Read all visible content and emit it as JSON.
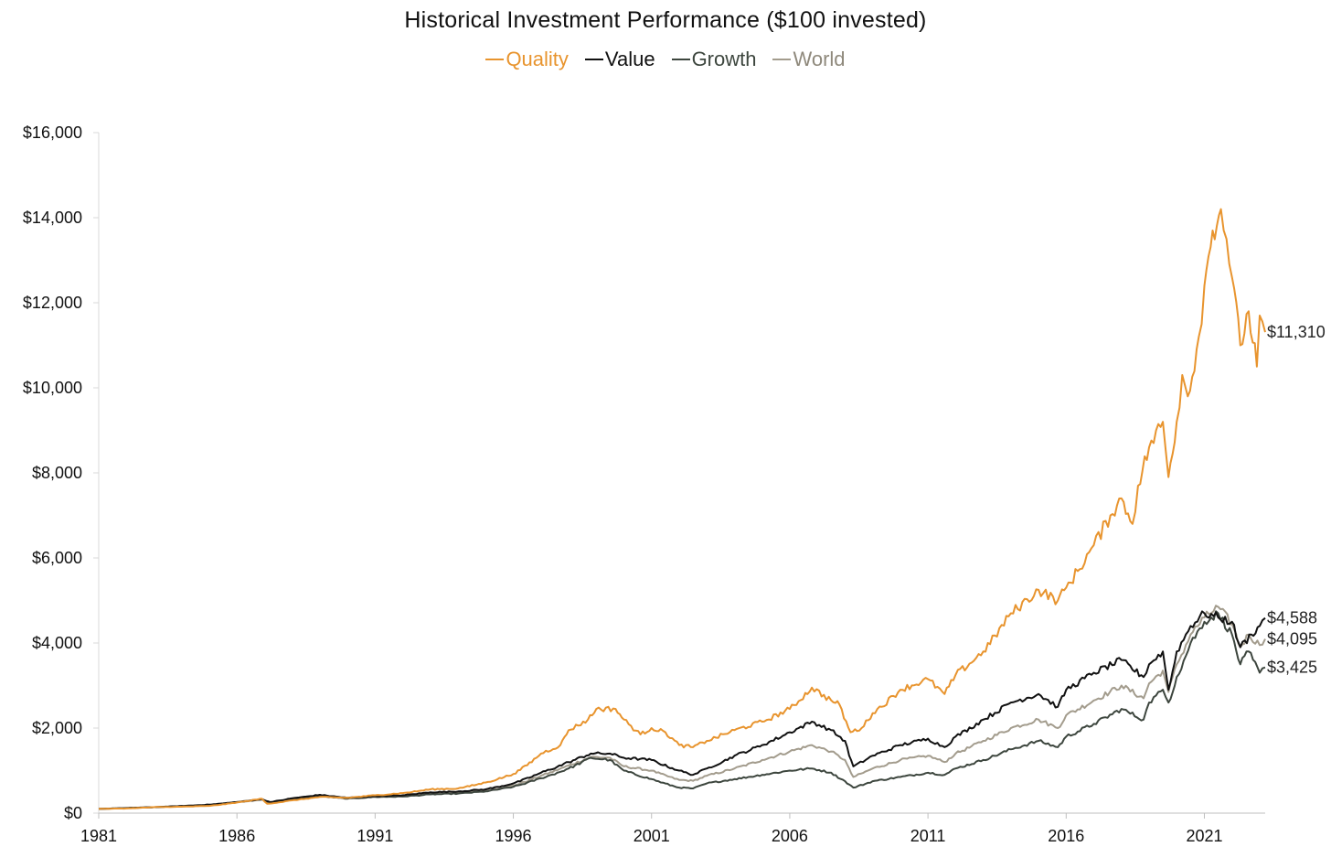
{
  "chart_data": {
    "type": "line",
    "title": "Historical Investment Performance ($100 invested)",
    "xlabel": "",
    "ylabel": "",
    "xlim": [
      1981,
      2023.2
    ],
    "ylim": [
      0,
      16000
    ],
    "x_ticks": [
      1981,
      1986,
      1991,
      1996,
      2001,
      2006,
      2011,
      2016,
      2021
    ],
    "x_tick_labels": [
      "1981",
      "1986",
      "1991",
      "1996",
      "2001",
      "2006",
      "2011",
      "2016",
      "2021"
    ],
    "y_ticks": [
      0,
      2000,
      4000,
      6000,
      8000,
      10000,
      12000,
      14000,
      16000
    ],
    "y_tick_labels": [
      "$0",
      "$2,000",
      "$4,000",
      "$6,000",
      "$8,000",
      "$10,000",
      "$12,000",
      "$14,000",
      "$16,000"
    ],
    "grid": false,
    "legend_position": "top-center",
    "series": [
      {
        "name": "Quality",
        "color": "#E8942E",
        "end_label": "$11,310",
        "points": [
          [
            1981,
            100
          ],
          [
            1982,
            110
          ],
          [
            1983,
            140
          ],
          [
            1984,
            150
          ],
          [
            1985,
            170
          ],
          [
            1986,
            250
          ],
          [
            1986.9,
            340
          ],
          [
            1987.1,
            220
          ],
          [
            1988,
            300
          ],
          [
            1989,
            380
          ],
          [
            1990,
            360
          ],
          [
            1991,
            420
          ],
          [
            1992,
            470
          ],
          [
            1993,
            560
          ],
          [
            1994,
            580
          ],
          [
            1995,
            720
          ],
          [
            1996,
            920
          ],
          [
            1997,
            1400
          ],
          [
            1997.7,
            1600
          ],
          [
            1998,
            1950
          ],
          [
            1998.7,
            2200
          ],
          [
            1999,
            2450
          ],
          [
            1999.7,
            2450
          ],
          [
            2000,
            2200
          ],
          [
            2000.6,
            1850
          ],
          [
            2001,
            2000
          ],
          [
            2001.5,
            1900
          ],
          [
            2002,
            1600
          ],
          [
            2002.5,
            1550
          ],
          [
            2003,
            1700
          ],
          [
            2004,
            1950
          ],
          [
            2005,
            2150
          ],
          [
            2006,
            2450
          ],
          [
            2006.8,
            2950
          ],
          [
            2007.5,
            2650
          ],
          [
            2007.8,
            2550
          ],
          [
            2008.2,
            1900
          ],
          [
            2008.6,
            2000
          ],
          [
            2009,
            2350
          ],
          [
            2010,
            2900
          ],
          [
            2011,
            3150
          ],
          [
            2011.6,
            2800
          ],
          [
            2012,
            3250
          ],
          [
            2013,
            3800
          ],
          [
            2014,
            4700
          ],
          [
            2015,
            5250
          ],
          [
            2015.7,
            5000
          ],
          [
            2016,
            5300
          ],
          [
            2017,
            6300
          ],
          [
            2017.6,
            7000
          ],
          [
            2018,
            7400
          ],
          [
            2018.4,
            6800
          ],
          [
            2018.6,
            7700
          ],
          [
            2019,
            8600
          ],
          [
            2019.5,
            9200
          ],
          [
            2019.7,
            7900
          ],
          [
            2020,
            9200
          ],
          [
            2020.2,
            10300
          ],
          [
            2020.4,
            9800
          ],
          [
            2020.8,
            11200
          ],
          [
            2021,
            12400
          ],
          [
            2021.3,
            13700
          ],
          [
            2021.6,
            14200
          ],
          [
            2021.8,
            13500
          ],
          [
            2022,
            12600
          ],
          [
            2022.3,
            11000
          ],
          [
            2022.6,
            11800
          ],
          [
            2022.9,
            10500
          ],
          [
            2023,
            11700
          ],
          [
            2023.2,
            11310
          ]
        ]
      },
      {
        "name": "Value",
        "color": "#111111",
        "end_label": "$4,588",
        "points": [
          [
            1981,
            100
          ],
          [
            1983,
            140
          ],
          [
            1985,
            200
          ],
          [
            1986,
            260
          ],
          [
            1986.9,
            330
          ],
          [
            1987.2,
            260
          ],
          [
            1988,
            350
          ],
          [
            1989,
            430
          ],
          [
            1990,
            360
          ],
          [
            1991,
            400
          ],
          [
            1992,
            420
          ],
          [
            1993,
            490
          ],
          [
            1994,
            510
          ],
          [
            1995,
            560
          ],
          [
            1996,
            700
          ],
          [
            1997,
            950
          ],
          [
            1998,
            1200
          ],
          [
            1998.8,
            1400
          ],
          [
            1999.5,
            1400
          ],
          [
            2000,
            1300
          ],
          [
            2001,
            1250
          ],
          [
            2002,
            1000
          ],
          [
            2002.5,
            900
          ],
          [
            2003,
            1050
          ],
          [
            2004,
            1350
          ],
          [
            2005,
            1600
          ],
          [
            2006,
            1900
          ],
          [
            2006.8,
            2150
          ],
          [
            2007.5,
            1950
          ],
          [
            2008,
            1700
          ],
          [
            2008.3,
            1100
          ],
          [
            2009,
            1350
          ],
          [
            2010,
            1600
          ],
          [
            2011,
            1750
          ],
          [
            2011.6,
            1550
          ],
          [
            2012,
            1800
          ],
          [
            2013,
            2200
          ],
          [
            2014,
            2600
          ],
          [
            2015,
            2800
          ],
          [
            2015.7,
            2500
          ],
          [
            2016,
            2900
          ],
          [
            2017,
            3300
          ],
          [
            2018,
            3600
          ],
          [
            2018.8,
            3200
          ],
          [
            2019,
            3500
          ],
          [
            2019.5,
            3800
          ],
          [
            2019.7,
            2900
          ],
          [
            2020,
            3800
          ],
          [
            2020.5,
            4400
          ],
          [
            2021,
            4700
          ],
          [
            2021.5,
            4600
          ],
          [
            2022,
            4500
          ],
          [
            2022.3,
            3900
          ],
          [
            2022.7,
            4200
          ],
          [
            2023,
            4400
          ],
          [
            2023.2,
            4588
          ]
        ]
      },
      {
        "name": "Growth",
        "color": "#3D463E",
        "end_label": "$3,425",
        "points": [
          [
            1981,
            100
          ],
          [
            1983,
            140
          ],
          [
            1985,
            190
          ],
          [
            1986,
            260
          ],
          [
            1986.9,
            320
          ],
          [
            1987.2,
            250
          ],
          [
            1988,
            320
          ],
          [
            1989,
            400
          ],
          [
            1990,
            340
          ],
          [
            1991,
            380
          ],
          [
            1992,
            390
          ],
          [
            1993,
            440
          ],
          [
            1994,
            460
          ],
          [
            1995,
            510
          ],
          [
            1996,
            620
          ],
          [
            1997,
            820
          ],
          [
            1998,
            1050
          ],
          [
            1998.8,
            1300
          ],
          [
            1999.5,
            1250
          ],
          [
            2000,
            1000
          ],
          [
            2001,
            800
          ],
          [
            2002,
            600
          ],
          [
            2002.5,
            580
          ],
          [
            2003,
            700
          ],
          [
            2004,
            800
          ],
          [
            2005,
            900
          ],
          [
            2006,
            1000
          ],
          [
            2006.8,
            1050
          ],
          [
            2007.5,
            950
          ],
          [
            2008,
            750
          ],
          [
            2008.3,
            600
          ],
          [
            2009,
            750
          ],
          [
            2010,
            850
          ],
          [
            2011,
            950
          ],
          [
            2011.6,
            900
          ],
          [
            2012,
            1050
          ],
          [
            2013,
            1250
          ],
          [
            2014,
            1500
          ],
          [
            2015,
            1700
          ],
          [
            2015.7,
            1550
          ],
          [
            2016,
            1800
          ],
          [
            2017,
            2100
          ],
          [
            2018,
            2450
          ],
          [
            2018.8,
            2200
          ],
          [
            2019,
            2600
          ],
          [
            2019.5,
            2900
          ],
          [
            2019.7,
            2600
          ],
          [
            2020,
            3200
          ],
          [
            2020.5,
            4000
          ],
          [
            2021,
            4500
          ],
          [
            2021.5,
            4700
          ],
          [
            2022,
            4200
          ],
          [
            2022.3,
            3500
          ],
          [
            2022.6,
            3800
          ],
          [
            2023,
            3300
          ],
          [
            2023.2,
            3425
          ]
        ]
      },
      {
        "name": "World",
        "color": "#A39C8D",
        "end_label": "$4,095",
        "points": [
          [
            1981,
            100
          ],
          [
            1983,
            140
          ],
          [
            1985,
            195
          ],
          [
            1986,
            255
          ],
          [
            1986.9,
            325
          ],
          [
            1987.2,
            255
          ],
          [
            1988,
            330
          ],
          [
            1989,
            410
          ],
          [
            1990,
            350
          ],
          [
            1991,
            390
          ],
          [
            1992,
            400
          ],
          [
            1993,
            460
          ],
          [
            1994,
            480
          ],
          [
            1995,
            530
          ],
          [
            1996,
            650
          ],
          [
            1997,
            880
          ],
          [
            1998,
            1120
          ],
          [
            1998.8,
            1320
          ],
          [
            1999.5,
            1300
          ],
          [
            2000,
            1100
          ],
          [
            2001,
            1000
          ],
          [
            2002,
            780
          ],
          [
            2002.5,
            760
          ],
          [
            2003,
            880
          ],
          [
            2004,
            1050
          ],
          [
            2005,
            1250
          ],
          [
            2006,
            1450
          ],
          [
            2006.8,
            1600
          ],
          [
            2007.5,
            1450
          ],
          [
            2008,
            1250
          ],
          [
            2008.3,
            850
          ],
          [
            2009,
            1050
          ],
          [
            2010,
            1250
          ],
          [
            2011,
            1350
          ],
          [
            2011.6,
            1200
          ],
          [
            2012,
            1400
          ],
          [
            2013,
            1700
          ],
          [
            2014,
            2000
          ],
          [
            2015,
            2200
          ],
          [
            2015.7,
            2000
          ],
          [
            2016,
            2300
          ],
          [
            2017,
            2650
          ],
          [
            2018,
            3000
          ],
          [
            2018.8,
            2700
          ],
          [
            2019,
            3050
          ],
          [
            2019.5,
            3350
          ],
          [
            2019.7,
            2850
          ],
          [
            2020,
            3500
          ],
          [
            2020.5,
            4200
          ],
          [
            2021,
            4600
          ],
          [
            2021.5,
            4850
          ],
          [
            2022,
            4450
          ],
          [
            2022.3,
            3900
          ],
          [
            2022.6,
            4200
          ],
          [
            2023,
            3950
          ],
          [
            2023.2,
            4095
          ]
        ]
      }
    ]
  }
}
